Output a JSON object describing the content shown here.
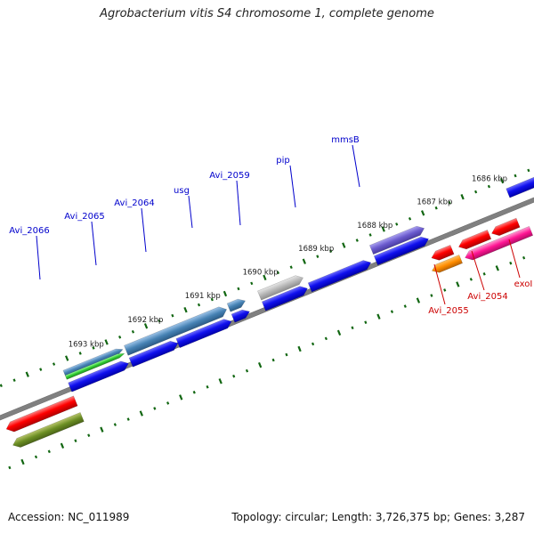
{
  "title": "Agrobacterium vitis S4 chromosome 1, complete genome",
  "footer": {
    "accession": "Accession: NC_011989",
    "summary": "Topology: circular; Length: 3,726,375 bp; Genes: 3,287"
  },
  "ruler": [
    {
      "label": "1693 kbp"
    },
    {
      "label": "1692 kbp"
    },
    {
      "label": "1691 kbp"
    },
    {
      "label": "1690 kbp"
    },
    {
      "label": "1689 kbp"
    },
    {
      "label": "1688 kbp"
    },
    {
      "label": "1687 kbp"
    },
    {
      "label": "1686 kbp"
    }
  ],
  "gene_labels": [
    {
      "name": "Avi_2066",
      "color": "#0000cc"
    },
    {
      "name": "Avi_2065",
      "color": "#0000cc"
    },
    {
      "name": "Avi_2064",
      "color": "#0000cc"
    },
    {
      "name": "usg",
      "color": "#0000cc"
    },
    {
      "name": "Avi_2059",
      "color": "#0000cc"
    },
    {
      "name": "pip",
      "color": "#0000cc"
    },
    {
      "name": "mmsB",
      "color": "#0000cc"
    },
    {
      "name": "Avi_2055",
      "color": "#cc0000"
    },
    {
      "name": "Avi_2054",
      "color": "#cc0000"
    },
    {
      "name": "exoI",
      "color": "#cc0000"
    }
  ],
  "colors": {
    "backbone": "#808080",
    "cds_forward": "#0000ee",
    "cds_reverse": "#ee0000",
    "gc_ticks": "#116611"
  }
}
